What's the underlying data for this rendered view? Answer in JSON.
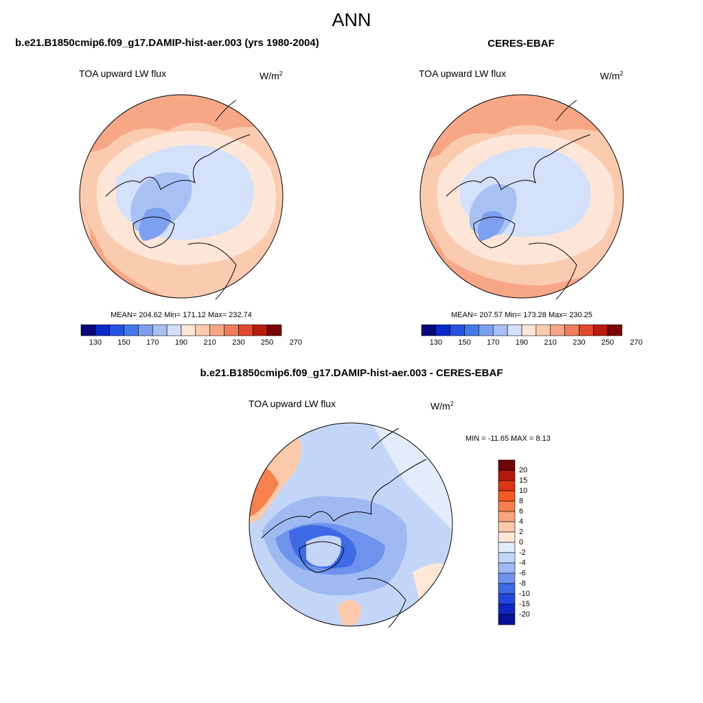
{
  "page_title": "ANN",
  "panels": [
    {
      "title": "b.e21.B1850cmip6.f09_g17.DAMIP-hist-aer.003 (yrs 1980-2004)",
      "field": "TOA upward LW flux",
      "units_base": "W/m",
      "units_exp": "2",
      "stats": "MEAN= 204.62  Min= 171.12  Max= 232.74",
      "colorbar_ticks": [
        "130",
        "150",
        "170",
        "190",
        "210",
        "230",
        "250",
        "270"
      ]
    },
    {
      "title": "CERES-EBAF",
      "field": "TOA upward LW flux",
      "units_base": "W/m",
      "units_exp": "2",
      "stats": "MEAN= 207.57  Min= 173.28  Max= 230.25",
      "colorbar_ticks": [
        "130",
        "150",
        "170",
        "190",
        "210",
        "230",
        "250",
        "270"
      ]
    },
    {
      "title": "b.e21.B1850cmip6.f09_g17.DAMIP-hist-aer.003 - CERES-EBAF",
      "field": "TOA upward LW flux",
      "units_base": "W/m",
      "units_exp": "2",
      "stats": "MIN = -11.65 MAX =   8.13",
      "colorbar_ticks": [
        "20",
        "15",
        "10",
        "8",
        "6",
        "4",
        "2",
        "0",
        "-2",
        "-4",
        "-6",
        "-8",
        "-10",
        "-15",
        "-20"
      ]
    }
  ],
  "colors": {
    "abs_scale": [
      "#08087a",
      "#0b28c8",
      "#2454e0",
      "#4479ea",
      "#7d9ff0",
      "#a9c0f5",
      "#d3e1fa",
      "#fde6d8",
      "#fbcbb0",
      "#f7a786",
      "#f17c5d",
      "#e24a2e",
      "#b81b10",
      "#7a0707"
    ],
    "diff_scale": [
      "#6e0505",
      "#b3190b",
      "#dd3512",
      "#f55a22",
      "#f7804d",
      "#f9a57e",
      "#fcc9aa",
      "#fde8d8",
      "#e3ecfb",
      "#c4d6f8",
      "#9fbaf3",
      "#6f93ec",
      "#3f6ae6",
      "#2147dd",
      "#0f27c4",
      "#061394"
    ]
  }
}
